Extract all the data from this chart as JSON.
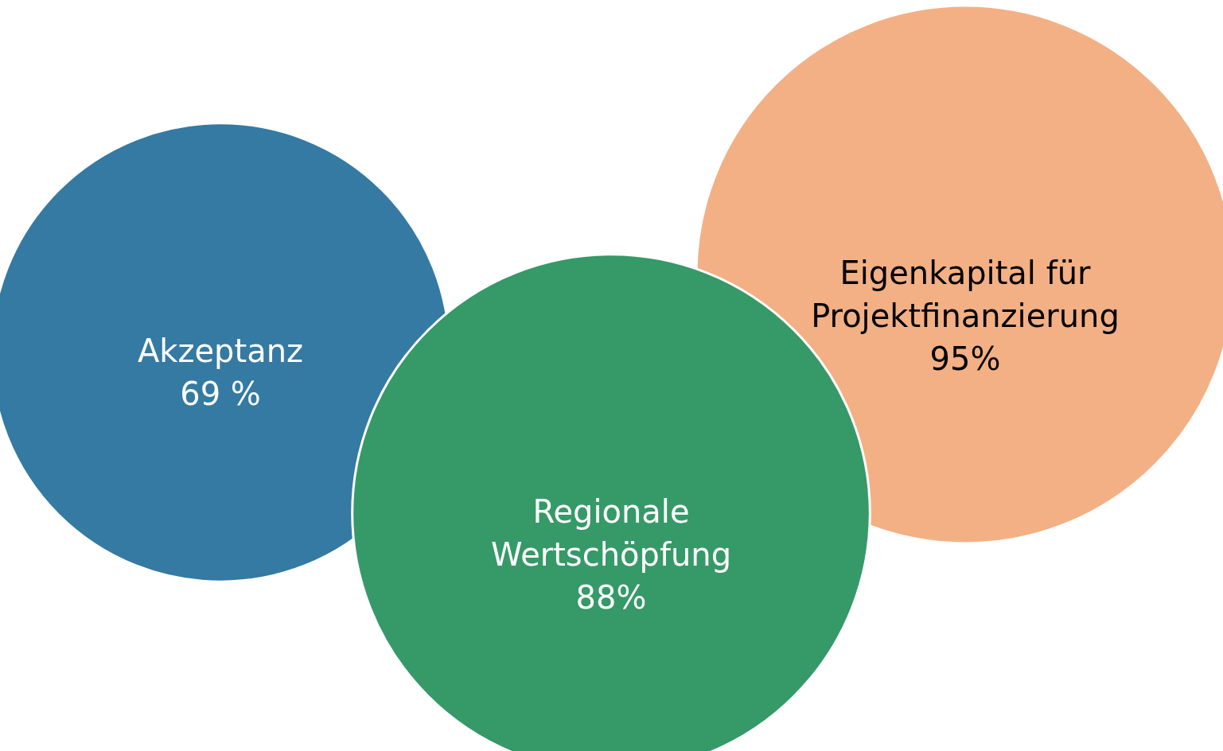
{
  "chart_data": {
    "type": "other",
    "categories": [
      "Akzeptanz",
      "Regionale Wertschöpfung",
      "Eigenkapital für Projektfinanzierung"
    ],
    "values": [
      69,
      88,
      95
    ],
    "value_labels": [
      "69 %",
      "88%",
      "95%"
    ],
    "colors": [
      "#347aa3",
      "#369968",
      "#f3b084"
    ]
  }
}
